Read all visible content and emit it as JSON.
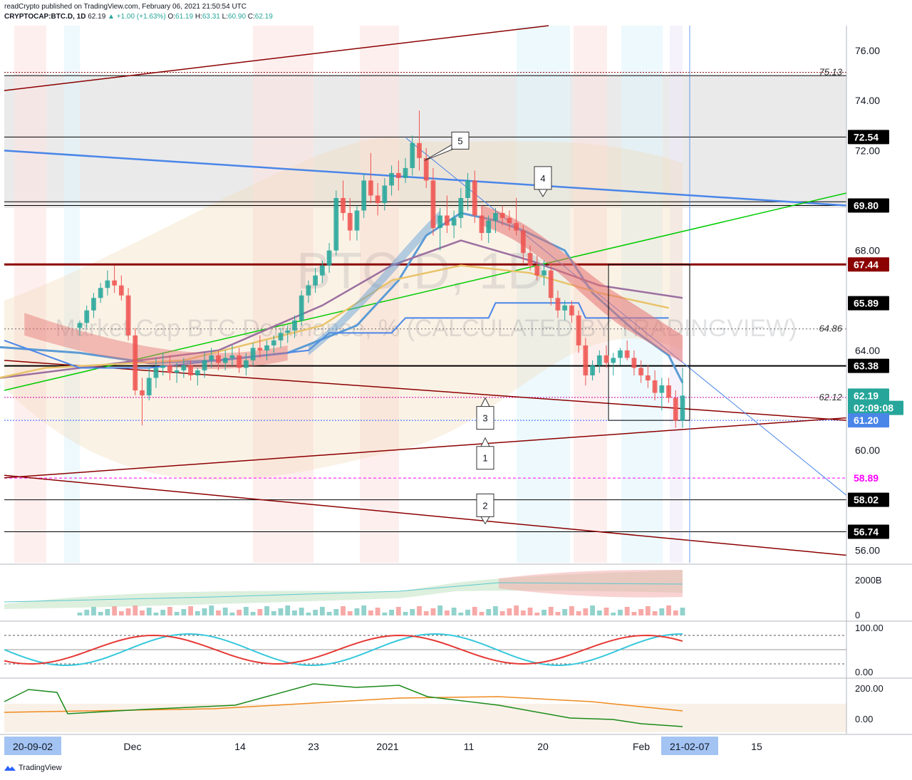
{
  "header": {
    "publisher_line": "readCrypto published on TradingView.com, February 06, 2021 21:50:54 UTC",
    "symbol": "CRYPTOCAP:BTC.D, 1D",
    "last": "62.19",
    "change": "▲ +1.00 (+1.63%)",
    "o_label": "O:",
    "o": "61.19",
    "h_label": "H:",
    "h": "63.31",
    "l_label": "L:",
    "l": "60.90",
    "c_label": "C:",
    "c": "62.19"
  },
  "watermark": {
    "line1": "BTC.D, 1D",
    "line2": "Market Cap BTC Dominance, % (CALCULATED BY TRADINGVIEW)"
  },
  "brand": {
    "name": "TradingView"
  },
  "colors": {
    "up": "#26a69a",
    "down": "#ef5350",
    "accent_blue": "#2962ff",
    "line_blue": "#4a86e8",
    "dark_red": "#8b0000",
    "green_line": "#00cc00",
    "magenta": "#ff00ff"
  },
  "chart_data": {
    "type": "candlestick",
    "title": "CRYPTOCAP:BTC.D, 1D",
    "ylim": [
      55.5,
      77.0
    ],
    "y_ticks": [
      "76.00",
      "74.00",
      "72.00",
      "68.00",
      "64.00",
      "60.00",
      "56.00"
    ],
    "x_ticks": [
      "Dec",
      "14",
      "23",
      "2021",
      "11",
      "20",
      "Feb",
      "15"
    ],
    "x_start_label": "20-09-02",
    "x_end_label": "21-02-07",
    "price_labels": [
      {
        "text": "72.54",
        "value": 72.54,
        "style": "black"
      },
      {
        "text": "69.80",
        "value": 69.8,
        "style": "black"
      },
      {
        "text": "67.44",
        "value": 67.44,
        "style": "darkred"
      },
      {
        "text": "65.89",
        "value": 65.89,
        "style": "black"
      },
      {
        "text": "63.38",
        "value": 63.38,
        "style": "black"
      },
      {
        "text": "62.19",
        "value": 62.19,
        "style": "teal"
      },
      {
        "text": "02:09:08",
        "value": 61.7,
        "style": "teal"
      },
      {
        "text": "61.20",
        "value": 61.2,
        "style": "blue"
      },
      {
        "text": "58.89",
        "value": 58.89,
        "style": "magenta"
      },
      {
        "text": "58.02",
        "value": 58.02,
        "style": "black"
      },
      {
        "text": "56.74",
        "value": 56.74,
        "style": "black"
      }
    ],
    "level_annotations": [
      {
        "text": "75.13",
        "value": 75.13
      },
      {
        "text": "64.86",
        "value": 64.86
      },
      {
        "text": "62.12",
        "value": 62.12
      }
    ],
    "callouts": [
      "1",
      "2",
      "3",
      "4",
      "5"
    ],
    "candles": [
      [
        64.9,
        65.2,
        64.6,
        65.1
      ],
      [
        65.1,
        65.8,
        64.9,
        65.6
      ],
      [
        65.6,
        66.3,
        65.3,
        66.1
      ],
      [
        66.1,
        66.7,
        65.9,
        66.5
      ],
      [
        66.5,
        67.2,
        66.2,
        66.8
      ],
      [
        66.8,
        67.4,
        66.3,
        66.6
      ],
      [
        66.6,
        67.0,
        66.0,
        66.2
      ],
      [
        66.2,
        66.5,
        64.4,
        64.6
      ],
      [
        64.6,
        64.9,
        62.2,
        62.4
      ],
      [
        62.4,
        62.9,
        61.0,
        62.2
      ],
      [
        62.2,
        63.3,
        62.0,
        62.9
      ],
      [
        62.9,
        63.7,
        62.5,
        63.3
      ],
      [
        63.3,
        63.9,
        63.0,
        63.4
      ],
      [
        63.4,
        63.8,
        62.8,
        63.1
      ],
      [
        63.1,
        63.5,
        62.7,
        63.2
      ],
      [
        63.2,
        63.7,
        62.9,
        63.4
      ],
      [
        63.4,
        63.6,
        62.8,
        63.0
      ],
      [
        63.0,
        63.3,
        62.6,
        63.2
      ],
      [
        63.2,
        63.9,
        62.9,
        63.6
      ],
      [
        63.6,
        64.1,
        63.3,
        63.8
      ],
      [
        63.8,
        64.0,
        63.2,
        63.5
      ],
      [
        63.5,
        64.0,
        63.2,
        63.7
      ],
      [
        63.7,
        64.2,
        63.4,
        63.8
      ],
      [
        63.8,
        64.1,
        63.1,
        63.3
      ],
      [
        63.3,
        63.9,
        63.0,
        63.6
      ],
      [
        63.6,
        64.3,
        63.4,
        64.1
      ],
      [
        64.1,
        64.6,
        63.7,
        64.0
      ],
      [
        64.0,
        64.4,
        63.6,
        64.2
      ],
      [
        64.2,
        64.6,
        63.9,
        64.4
      ],
      [
        64.4,
        64.9,
        64.1,
        64.7
      ],
      [
        64.7,
        65.0,
        64.3,
        64.8
      ],
      [
        64.8,
        65.4,
        64.5,
        65.2
      ],
      [
        65.2,
        66.4,
        65.0,
        66.2
      ],
      [
        66.2,
        66.8,
        65.9,
        66.6
      ],
      [
        66.6,
        67.3,
        66.3,
        67.0
      ],
      [
        67.0,
        67.6,
        66.7,
        67.4
      ],
      [
        67.4,
        68.3,
        67.1,
        68.0
      ],
      [
        68.0,
        70.4,
        67.8,
        70.1
      ],
      [
        70.1,
        70.8,
        69.2,
        69.5
      ],
      [
        69.5,
        70.1,
        68.4,
        68.8
      ],
      [
        68.8,
        69.8,
        68.4,
        69.6
      ],
      [
        69.6,
        71.1,
        69.3,
        70.8
      ],
      [
        70.8,
        71.9,
        69.9,
        70.2
      ],
      [
        70.2,
        70.7,
        69.4,
        69.9
      ],
      [
        69.9,
        70.9,
        69.6,
        70.6
      ],
      [
        70.6,
        71.4,
        70.2,
        71.1
      ],
      [
        71.1,
        71.6,
        70.4,
        70.9
      ],
      [
        70.9,
        71.7,
        70.7,
        71.3
      ],
      [
        71.3,
        72.6,
        71.0,
        72.3
      ],
      [
        72.3,
        73.6,
        71.2,
        71.7
      ],
      [
        71.7,
        72.1,
        70.5,
        70.8
      ],
      [
        70.8,
        71.3,
        68.6,
        68.9
      ],
      [
        68.9,
        69.7,
        68.0,
        69.4
      ],
      [
        69.4,
        70.2,
        68.7,
        69.0
      ],
      [
        69.0,
        69.6,
        68.5,
        69.3
      ],
      [
        69.3,
        70.5,
        68.9,
        70.1
      ],
      [
        70.1,
        71.1,
        69.6,
        70.8
      ],
      [
        70.8,
        71.2,
        69.1,
        69.4
      ],
      [
        69.4,
        69.8,
        68.4,
        68.7
      ],
      [
        68.7,
        69.4,
        68.3,
        69.2
      ],
      [
        69.2,
        69.7,
        68.7,
        69.5
      ],
      [
        69.5,
        69.8,
        69.0,
        69.3
      ],
      [
        69.3,
        69.6,
        68.8,
        69.1
      ],
      [
        69.1,
        70.1,
        68.6,
        68.8
      ],
      [
        68.8,
        69.0,
        67.5,
        67.9
      ],
      [
        67.9,
        68.2,
        67.2,
        67.4
      ],
      [
        67.4,
        67.8,
        66.8,
        67.0
      ],
      [
        67.0,
        67.6,
        66.6,
        67.2
      ],
      [
        67.2,
        67.5,
        65.8,
        66.1
      ],
      [
        66.1,
        66.4,
        65.3,
        65.6
      ],
      [
        65.6,
        66.0,
        65.2,
        65.8
      ],
      [
        65.8,
        66.0,
        65.1,
        65.4
      ],
      [
        65.4,
        65.6,
        63.9,
        64.2
      ],
      [
        64.2,
        64.5,
        62.6,
        63.0
      ],
      [
        63.0,
        63.6,
        62.8,
        63.4
      ],
      [
        63.4,
        64.0,
        63.1,
        63.8
      ],
      [
        63.8,
        64.2,
        63.3,
        63.5
      ],
      [
        63.5,
        63.9,
        63.0,
        63.7
      ],
      [
        63.7,
        64.1,
        63.4,
        64.0
      ],
      [
        64.0,
        64.4,
        63.6,
        63.7
      ],
      [
        63.7,
        64.0,
        63.0,
        63.3
      ],
      [
        63.3,
        63.6,
        62.7,
        63.0
      ],
      [
        63.0,
        63.4,
        62.5,
        62.8
      ],
      [
        62.8,
        63.2,
        62.0,
        62.3
      ],
      [
        62.3,
        62.9,
        61.6,
        62.6
      ],
      [
        62.6,
        62.9,
        61.9,
        62.1
      ],
      [
        62.1,
        62.4,
        60.9,
        61.19
      ],
      [
        61.19,
        63.31,
        60.9,
        62.19
      ]
    ]
  }
}
